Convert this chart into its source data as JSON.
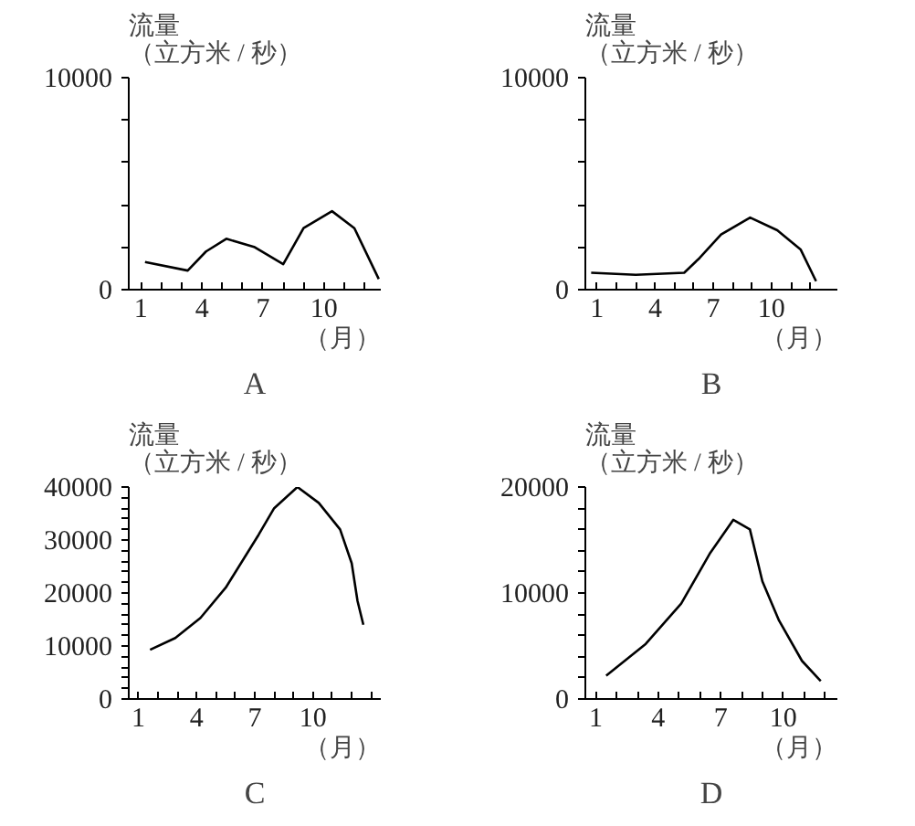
{
  "chart_data": [
    {
      "type": "line",
      "title": "A",
      "ylabel": "流量（立方米 / 秒）",
      "xlabel": "（月）",
      "x": [
        1.2,
        3.3,
        4.2,
        5.2,
        6.6,
        8.0,
        9.0,
        10.4,
        11.5,
        12.7
      ],
      "values": [
        1300,
        900,
        1800,
        2400,
        2000,
        1200,
        2900,
        3700,
        2900,
        500
      ],
      "color": "#000000",
      "xlim": [
        0.4,
        12.8
      ],
      "xticks": [
        1,
        {
          "value": 2,
          "label": null
        },
        {
          "value": 3,
          "label": null
        },
        4,
        {
          "value": 5,
          "label": null
        },
        {
          "value": 6,
          "label": null
        },
        7,
        {
          "value": 8,
          "label": null
        },
        {
          "value": 9,
          "label": null
        },
        10,
        {
          "value": 11,
          "label": null
        },
        {
          "value": 12,
          "label": null
        }
      ],
      "ylim": [
        0,
        10000
      ],
      "yticks": [
        0,
        {
          "value": 2000,
          "label": null
        },
        {
          "value": 4000,
          "label": null
        },
        {
          "value": 6000,
          "label": null
        },
        {
          "value": 8000,
          "label": null
        },
        10000
      ]
    },
    {
      "type": "line",
      "title": "B",
      "ylabel": "流量（立方米 / 秒）",
      "xlabel": "（月）",
      "x": [
        0.7,
        3.0,
        5.5,
        6.3,
        7.4,
        8.9,
        10.3,
        11.5,
        12.3
      ],
      "values": [
        800,
        700,
        800,
        1500,
        2600,
        3400,
        2800,
        1900,
        400
      ],
      "color": "#000000",
      "xlim": [
        0.4,
        13.4
      ],
      "xticks": [
        1,
        {
          "value": 2,
          "label": null
        },
        {
          "value": 3,
          "label": null
        },
        4,
        {
          "value": 5,
          "label": null
        },
        {
          "value": 6,
          "label": null
        },
        7,
        {
          "value": 8,
          "label": null
        },
        {
          "value": 9,
          "label": null
        },
        10,
        {
          "value": 11,
          "label": null
        },
        {
          "value": 12,
          "label": null
        }
      ],
      "ylim": [
        0,
        10000
      ],
      "yticks": [
        0,
        {
          "value": 2000,
          "label": null
        },
        {
          "value": 4000,
          "label": null
        },
        {
          "value": 6000,
          "label": null
        },
        {
          "value": 8000,
          "label": null
        },
        10000
      ]
    },
    {
      "type": "line",
      "title": "C",
      "ylabel": "流量（立方米 / 秒）",
      "xlabel": "（月）",
      "x": [
        1.6,
        2.9,
        4.2,
        5.5,
        7.2,
        8.0,
        9.2,
        10.3,
        11.4,
        12.0,
        12.3,
        12.6
      ],
      "values": [
        9300,
        11500,
        15300,
        21000,
        31000,
        36000,
        40000,
        37000,
        32000,
        25600,
        18500,
        14000
      ],
      "color": "#000000",
      "xlim": [
        0.5,
        13.5
      ],
      "xticks": [
        1,
        {
          "value": 2,
          "label": null
        },
        {
          "value": 3,
          "label": null
        },
        4,
        {
          "value": 5,
          "label": null
        },
        {
          "value": 6,
          "label": null
        },
        7,
        {
          "value": 8,
          "label": null
        },
        {
          "value": 9,
          "label": null
        },
        10,
        {
          "value": 11,
          "label": null
        },
        {
          "value": 12,
          "label": null
        },
        {
          "value": 13,
          "label": null
        }
      ],
      "ylim": [
        0,
        40000
      ],
      "yticks": [
        0,
        {
          "value": 2000,
          "label": null
        },
        {
          "value": 4000,
          "label": null
        },
        {
          "value": 6000,
          "label": null
        },
        {
          "value": 8000,
          "label": null
        },
        10000,
        {
          "value": 12000,
          "label": null
        },
        {
          "value": 14000,
          "label": null
        },
        {
          "value": 16000,
          "label": null
        },
        {
          "value": 18000,
          "label": null
        },
        20000,
        {
          "value": 22000,
          "label": null
        },
        {
          "value": 24000,
          "label": null
        },
        {
          "value": 26000,
          "label": null
        },
        {
          "value": 28000,
          "label": null
        },
        30000,
        {
          "value": 32000,
          "label": null
        },
        {
          "value": 34000,
          "label": null
        },
        {
          "value": 36000,
          "label": null
        },
        {
          "value": 38000,
          "label": null
        },
        40000
      ]
    },
    {
      "type": "line",
      "title": "D",
      "ylabel": "流量（立方米 / 秒）",
      "xlabel": "（月）",
      "x": [
        1.5,
        3.4,
        5.1,
        6.5,
        7.6,
        8.4,
        9.0,
        9.8,
        10.9,
        11.8
      ],
      "values": [
        2200,
        5200,
        9000,
        13800,
        16900,
        16000,
        11100,
        7400,
        3600,
        1700
      ],
      "color": "#000000",
      "xlim": [
        0.5,
        12.6
      ],
      "xticks": [
        1,
        {
          "value": 2,
          "label": null
        },
        {
          "value": 3,
          "label": null
        },
        4,
        {
          "value": 5,
          "label": null
        },
        {
          "value": 6,
          "label": null
        },
        7,
        {
          "value": 8,
          "label": null
        },
        {
          "value": 9,
          "label": null
        },
        10,
        {
          "value": 11,
          "label": null
        },
        {
          "value": 12,
          "label": null
        }
      ],
      "ylim": [
        0,
        20000
      ],
      "yticks": [
        0,
        {
          "value": 2000,
          "label": null
        },
        {
          "value": 4000,
          "label": null
        },
        {
          "value": 6000,
          "label": null
        },
        {
          "value": 8000,
          "label": null
        },
        10000,
        {
          "value": 12000,
          "label": null
        },
        {
          "value": 14000,
          "label": null
        },
        {
          "value": 16000,
          "label": null
        },
        {
          "value": 18000,
          "label": null
        },
        20000
      ]
    }
  ]
}
